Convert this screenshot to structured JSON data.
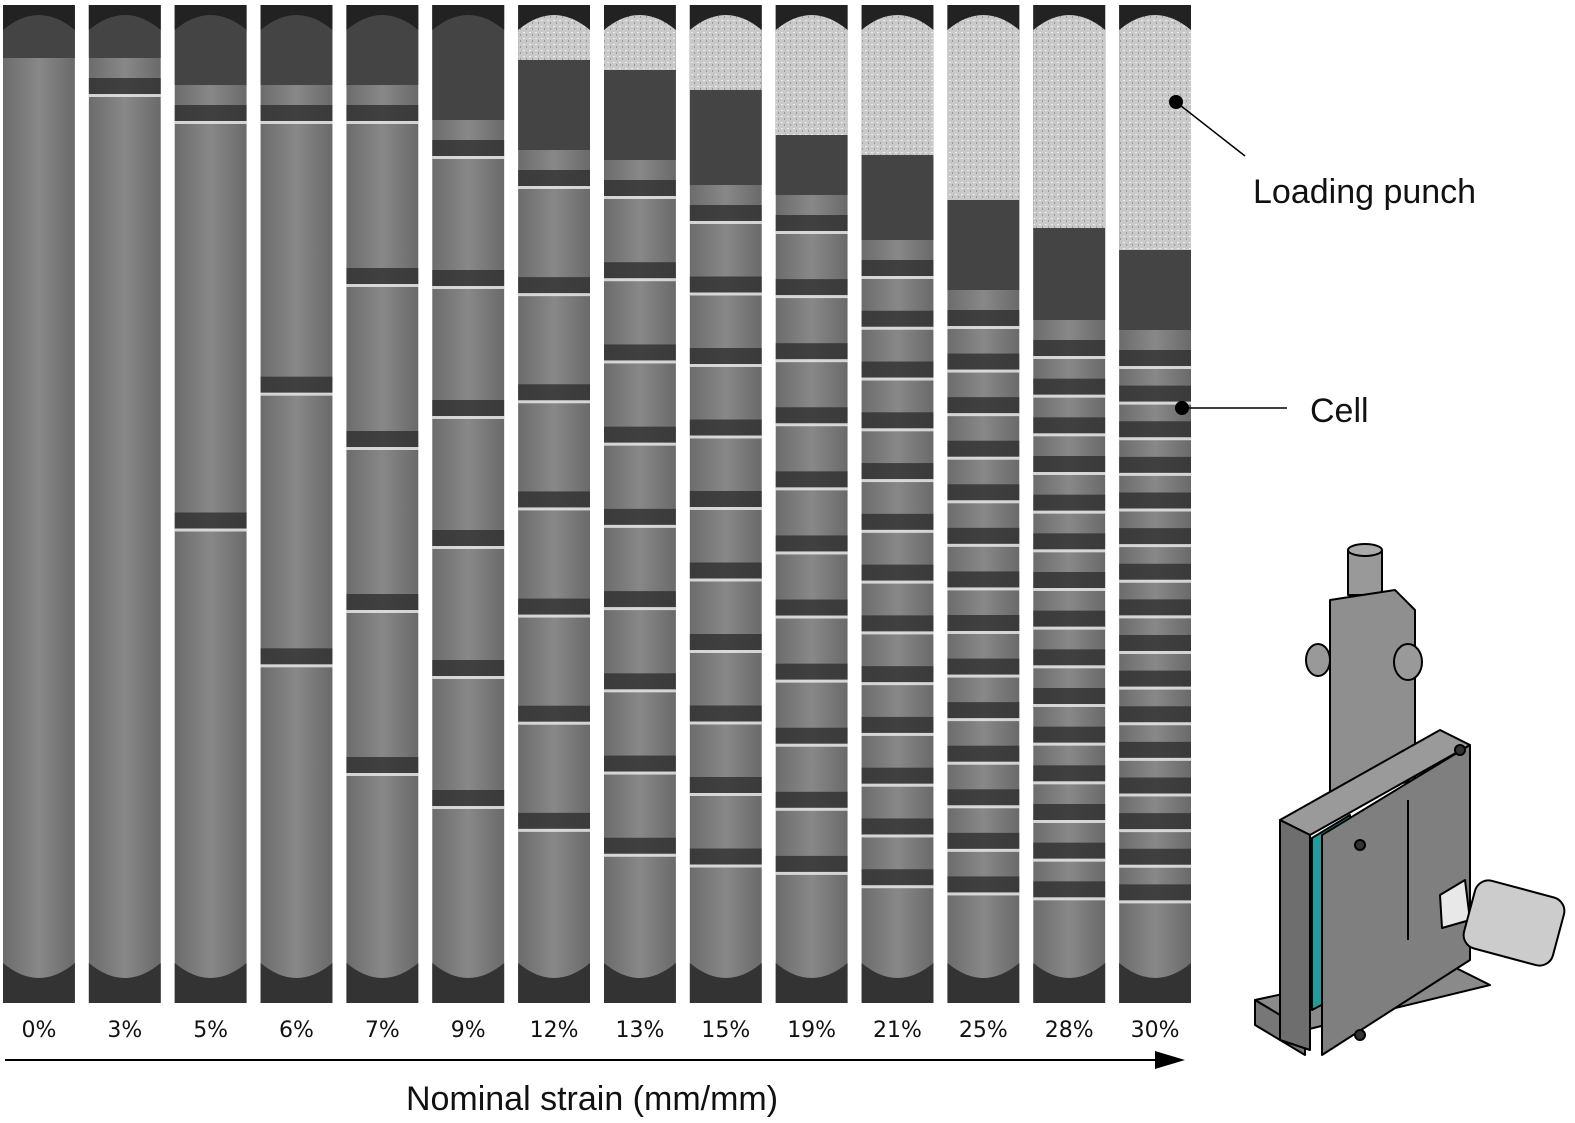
{
  "figure": {
    "panels": [
      "0%",
      "3%",
      "5%",
      "6%",
      "7%",
      "9%",
      "12%",
      "13%",
      "15%",
      "19%",
      "21%",
      "25%",
      "28%",
      "30%"
    ],
    "x_axis_label": "Nominal strain (mm/mm)",
    "annotations": [
      "Loading punch",
      "Cell"
    ]
  }
}
